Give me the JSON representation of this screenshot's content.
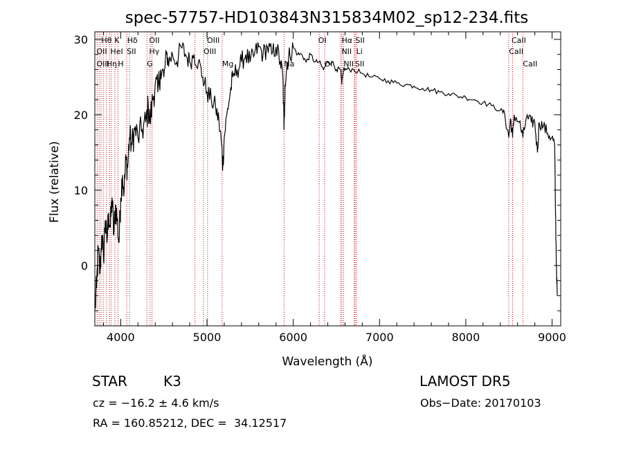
{
  "chart_data": {
    "type": "line",
    "title": "spec-57757-HD103843N315834M02_sp12-234.fits",
    "xlabel": "Wavelength (Å)",
    "ylabel": "Flux (relative)",
    "xlim": [
      3700,
      9100
    ],
    "ylim": [
      -8,
      31
    ],
    "x_ticks": [
      4000,
      5000,
      6000,
      7000,
      8000,
      9000
    ],
    "y_ticks": [
      0,
      10,
      20,
      30
    ],
    "grid": false,
    "series": [
      {
        "color": "#000000",
        "points": [
          [
            3700,
            -6
          ],
          [
            3720,
            -3
          ],
          [
            3740,
            2
          ],
          [
            3760,
            -1
          ],
          [
            3780,
            4
          ],
          [
            3800,
            1
          ],
          [
            3820,
            6
          ],
          [
            3840,
            3
          ],
          [
            3860,
            7
          ],
          [
            3880,
            5
          ],
          [
            3900,
            9
          ],
          [
            3920,
            4
          ],
          [
            3940,
            8
          ],
          [
            3960,
            6
          ],
          [
            3980,
            3
          ],
          [
            4000,
            9
          ],
          [
            4020,
            12
          ],
          [
            4040,
            10
          ],
          [
            4060,
            14
          ],
          [
            4080,
            13
          ],
          [
            4100,
            17
          ],
          [
            4130,
            16
          ],
          [
            4160,
            18
          ],
          [
            4200,
            17
          ],
          [
            4250,
            18
          ],
          [
            4290,
            19
          ],
          [
            4320,
            21
          ],
          [
            4340,
            19
          ],
          [
            4370,
            22
          ],
          [
            4400,
            24
          ],
          [
            4430,
            23
          ],
          [
            4460,
            26
          ],
          [
            4500,
            25
          ],
          [
            4530,
            28
          ],
          [
            4560,
            27
          ],
          [
            4600,
            28
          ],
          [
            4650,
            27
          ],
          [
            4700,
            29
          ],
          [
            4750,
            28
          ],
          [
            4800,
            27
          ],
          [
            4850,
            28
          ],
          [
            4900,
            27
          ],
          [
            4950,
            25
          ],
          [
            5000,
            23
          ],
          [
            5050,
            22
          ],
          [
            5100,
            21
          ],
          [
            5140,
            19
          ],
          [
            5170,
            16
          ],
          [
            5183,
            13
          ],
          [
            5200,
            17
          ],
          [
            5230,
            20
          ],
          [
            5270,
            23
          ],
          [
            5300,
            25
          ],
          [
            5350,
            26
          ],
          [
            5400,
            27
          ],
          [
            5450,
            28
          ],
          [
            5500,
            27
          ],
          [
            5550,
            28
          ],
          [
            5600,
            29
          ],
          [
            5650,
            28
          ],
          [
            5700,
            29
          ],
          [
            5750,
            28
          ],
          [
            5800,
            29
          ],
          [
            5850,
            27
          ],
          [
            5880,
            25
          ],
          [
            5893,
            18
          ],
          [
            5905,
            24
          ],
          [
            5930,
            27
          ],
          [
            5960,
            28
          ],
          [
            6000,
            29
          ],
          [
            6050,
            28
          ],
          [
            6100,
            28
          ],
          [
            6150,
            27
          ],
          [
            6200,
            28
          ],
          [
            6250,
            27
          ],
          [
            6300,
            27
          ],
          [
            6350,
            26
          ],
          [
            6400,
            27
          ],
          [
            6450,
            27
          ],
          [
            6500,
            26
          ],
          [
            6550,
            26
          ],
          [
            6563,
            24
          ],
          [
            6580,
            26
          ],
          [
            6620,
            26
          ],
          [
            6700,
            26
          ],
          [
            6800,
            25.5
          ],
          [
            6900,
            25
          ],
          [
            7000,
            24.8
          ],
          [
            7100,
            24.5
          ],
          [
            7200,
            24.2
          ],
          [
            7300,
            24
          ],
          [
            7400,
            23.8
          ],
          [
            7500,
            23.5
          ],
          [
            7600,
            23.3
          ],
          [
            7700,
            23
          ],
          [
            7800,
            22.8
          ],
          [
            7900,
            22.5
          ],
          [
            8000,
            22.3
          ],
          [
            8100,
            22
          ],
          [
            8200,
            21.6
          ],
          [
            8300,
            21.2
          ],
          [
            8400,
            20.6
          ],
          [
            8450,
            20.2
          ],
          [
            8498,
            17
          ],
          [
            8520,
            19.5
          ],
          [
            8542,
            17
          ],
          [
            8560,
            20
          ],
          [
            8620,
            19
          ],
          [
            8662,
            17
          ],
          [
            8700,
            19.5
          ],
          [
            8760,
            19
          ],
          [
            8800,
            19
          ],
          [
            8830,
            15
          ],
          [
            8850,
            19
          ],
          [
            8900,
            18.5
          ],
          [
            8950,
            17.5
          ],
          [
            9000,
            17
          ],
          [
            9030,
            16
          ],
          [
            9040,
            7
          ],
          [
            9050,
            0
          ],
          [
            9060,
            -4
          ]
        ]
      }
    ],
    "line_markers": [
      {
        "wavelength": 3727,
        "color": "#cc0000"
      },
      {
        "wavelength": 3750,
        "color": "#cc0000"
      },
      {
        "wavelength": 3771,
        "color": "#cc0000"
      },
      {
        "wavelength": 3798,
        "color": "#cc0000"
      },
      {
        "wavelength": 3835,
        "color": "#cc0000"
      },
      {
        "wavelength": 3869,
        "color": "#cc0000"
      },
      {
        "wavelength": 3889,
        "color": "#cc0000"
      },
      {
        "wavelength": 3933,
        "color": "#cc0000"
      },
      {
        "wavelength": 3968,
        "color": "#cc0000"
      },
      {
        "wavelength": 4070,
        "color": "#cc0000"
      },
      {
        "wavelength": 4102,
        "color": "#cc0000"
      },
      {
        "wavelength": 4304,
        "color": "#cc0000"
      },
      {
        "wavelength": 4340,
        "color": "#cc0000"
      },
      {
        "wavelength": 4363,
        "color": "#cc0000"
      },
      {
        "wavelength": 4861,
        "color": "#cc0000"
      },
      {
        "wavelength": 4959,
        "color": "#cc0000"
      },
      {
        "wavelength": 5007,
        "color": "#cc0000"
      },
      {
        "wavelength": 5175,
        "color": "#cc0000"
      },
      {
        "wavelength": 5894,
        "color": "#cc0000"
      },
      {
        "wavelength": 6300,
        "color": "#cc0000"
      },
      {
        "wavelength": 6364,
        "color": "#cc0000"
      },
      {
        "wavelength": 6548,
        "color": "#cc0000"
      },
      {
        "wavelength": 6563,
        "color": "#cc0000"
      },
      {
        "wavelength": 6583,
        "color": "#cc0000"
      },
      {
        "wavelength": 6707,
        "color": "#cc0000"
      },
      {
        "wavelength": 6716,
        "color": "#cc0000"
      },
      {
        "wavelength": 6731,
        "color": "#cc0000"
      },
      {
        "wavelength": 8498,
        "color": "#cc0000"
      },
      {
        "wavelength": 8542,
        "color": "#cc0000"
      },
      {
        "wavelength": 8662,
        "color": "#cc0000"
      }
    ],
    "line_labels": [
      {
        "text": "Hθ",
        "wavelength": 3775,
        "row": 0
      },
      {
        "text": "K",
        "wavelength": 3928,
        "row": 0
      },
      {
        "text": "Hδ",
        "wavelength": 4075,
        "row": 0
      },
      {
        "text": "OII",
        "wavelength": 4330,
        "row": 0
      },
      {
        "text": "OIII",
        "wavelength": 5000,
        "row": 0
      },
      {
        "text": "OI",
        "wavelength": 6290,
        "row": 0
      },
      {
        "text": "Hα",
        "wavelength": 6560,
        "row": 0
      },
      {
        "text": "SII",
        "wavelength": 6720,
        "row": 0
      },
      {
        "text": "CaII",
        "wavelength": 8530,
        "row": 0
      },
      {
        "text": "OII",
        "wavelength": 3720,
        "row": 1
      },
      {
        "text": "HeI",
        "wavelength": 3880,
        "row": 1
      },
      {
        "text": "SII",
        "wavelength": 4070,
        "row": 1
      },
      {
        "text": "Hγ",
        "wavelength": 4330,
        "row": 1
      },
      {
        "text": "OIII",
        "wavelength": 4960,
        "row": 1
      },
      {
        "text": "NII",
        "wavelength": 6560,
        "row": 1
      },
      {
        "text": "Li",
        "wavelength": 6730,
        "row": 1
      },
      {
        "text": "CaII",
        "wavelength": 8500,
        "row": 1
      },
      {
        "text": "OIII",
        "wavelength": 3720,
        "row": 2
      },
      {
        "text": "Hη",
        "wavelength": 3835,
        "row": 2
      },
      {
        "text": "H",
        "wavelength": 3968,
        "row": 2
      },
      {
        "text": "G",
        "wavelength": 4304,
        "row": 2
      },
      {
        "text": "Mg",
        "wavelength": 5175,
        "row": 2
      },
      {
        "text": "Na",
        "wavelength": 5894,
        "row": 2
      },
      {
        "text": "OI",
        "wavelength": 6360,
        "row": 2
      },
      {
        "text": "NII",
        "wavelength": 6583,
        "row": 2
      },
      {
        "text": "SII",
        "wavelength": 6716,
        "row": 2
      },
      {
        "text": "CaII",
        "wavelength": 8662,
        "row": 2
      }
    ]
  },
  "footer": {
    "object_class": "STAR",
    "subclass": "K3",
    "survey": "LAMOST DR5",
    "cz": "cz = −16.2 ± 4.6 km/s",
    "obs_date": "Obs−Date: 20170103",
    "coords": "RA = 160.85212, DEC =  34.12517"
  }
}
